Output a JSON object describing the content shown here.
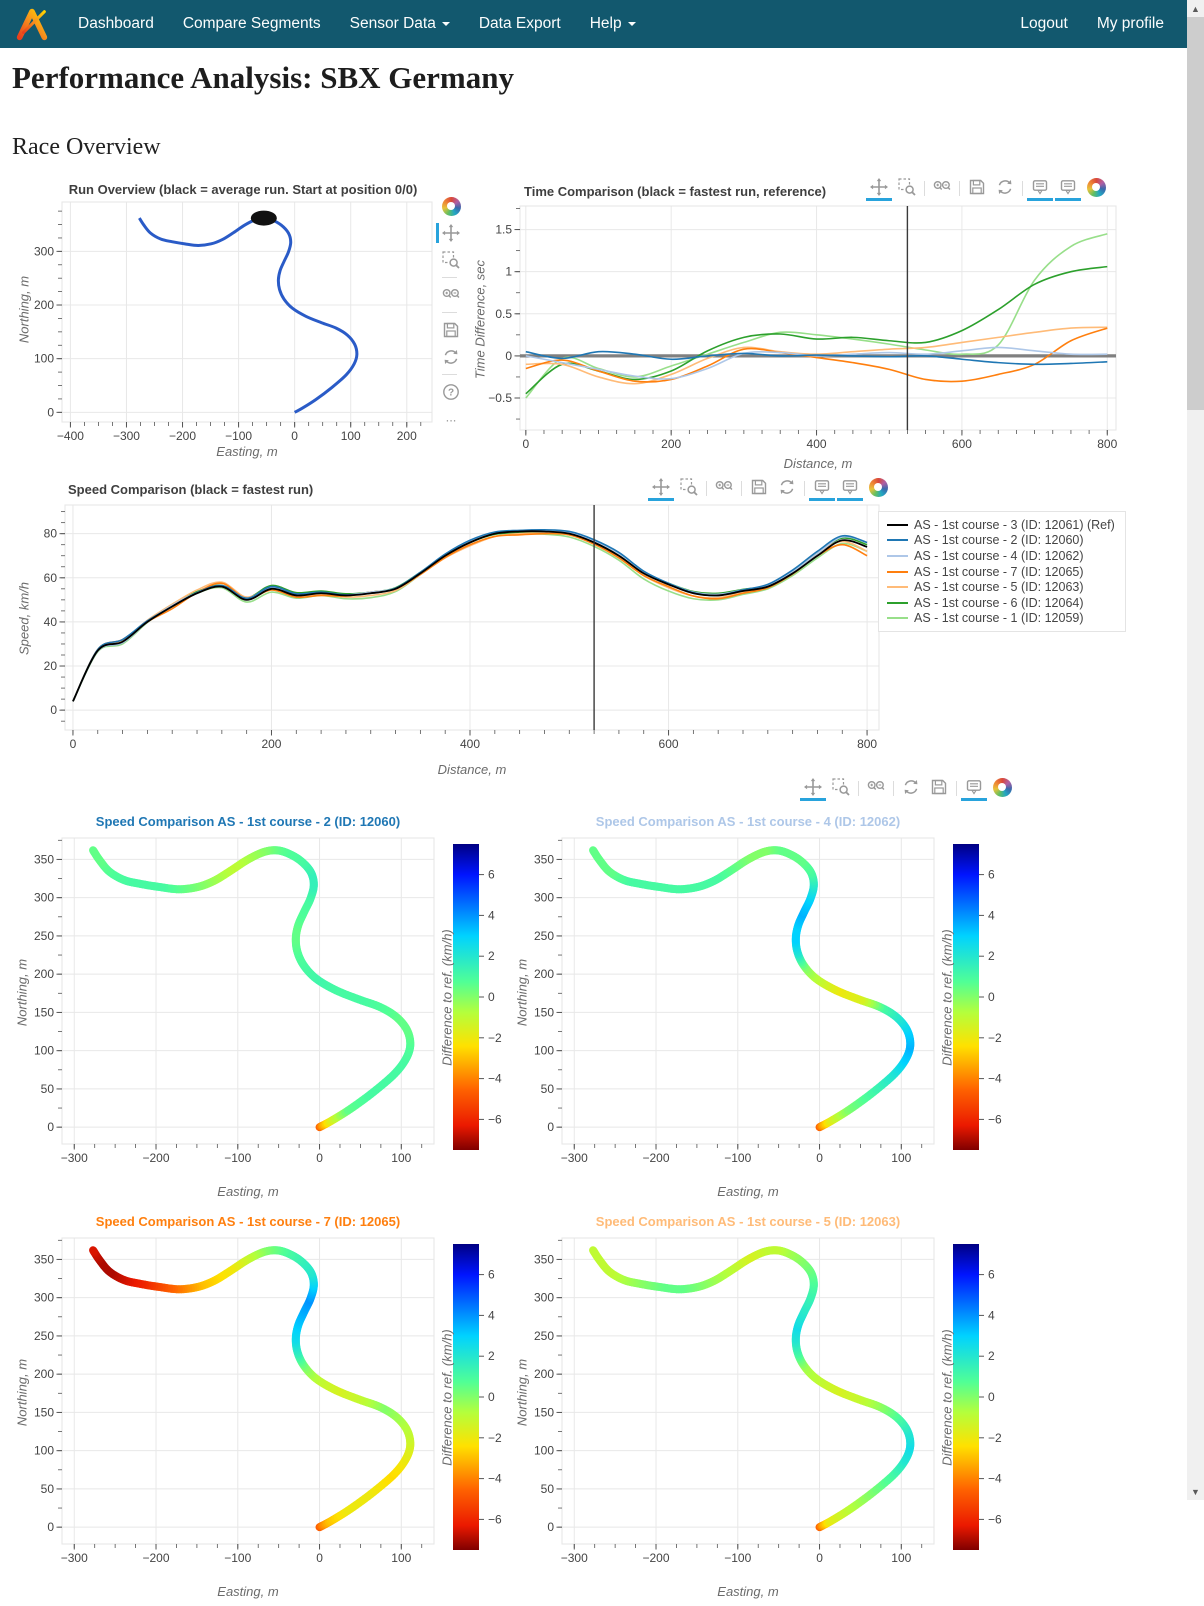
{
  "nav": {
    "items": [
      {
        "label": "Dashboard"
      },
      {
        "label": "Compare Segments"
      },
      {
        "label": "Sensor Data",
        "caret": true
      },
      {
        "label": "Data Export"
      },
      {
        "label": "Help",
        "caret": true
      }
    ],
    "right_items": [
      {
        "label": "Logout"
      },
      {
        "label": "My profile"
      }
    ]
  },
  "page": {
    "title": "Performance Analysis: SBX Germany",
    "section": "Race Overview"
  },
  "colors": {
    "navbar": "#12586e",
    "accent_active": "#28a3dc",
    "track_blue": "#2a5bc7",
    "reference_gray": "#808080"
  },
  "modebars": {
    "run_overview": {
      "orientation": "vertical",
      "icons": [
        "plotly-logo",
        "pan",
        "box-zoom",
        "sep",
        "zoom-in-out",
        "sep",
        "save",
        "reset",
        "sep",
        "help",
        "more"
      ],
      "active": [
        "pan"
      ]
    },
    "time_comparison": {
      "icons": [
        "pan",
        "box-zoom",
        "sep",
        "zoom-in-out",
        "sep",
        "save",
        "reset",
        "sep",
        "hover-closest",
        "hover-compare",
        "plotly-logo"
      ],
      "active": [
        "pan",
        "hover-closest",
        "hover-compare"
      ]
    },
    "speed_comparison": {
      "icons": [
        "pan",
        "box-zoom",
        "sep",
        "zoom-in-out",
        "sep",
        "save",
        "reset",
        "sep",
        "hover-closest",
        "hover-compare",
        "plotly-logo"
      ],
      "active": [
        "pan",
        "hover-closest",
        "hover-compare"
      ]
    },
    "heatmaps": {
      "icons": [
        "pan",
        "box-zoom",
        "sep",
        "zoom-in-out",
        "sep",
        "reset",
        "save",
        "sep",
        "hover-closest",
        "plotly-logo"
      ],
      "active": [
        "pan",
        "hover-closest"
      ]
    }
  },
  "chart_data": [
    {
      "id": "run-overview",
      "type": "line",
      "title": "Run Overview (black = average run. Start at position 0/0)",
      "xlabel": "Easting, m",
      "ylabel": "Northing, m",
      "xlim": [
        -415,
        245
      ],
      "ylim": [
        -18,
        392
      ],
      "xticks": {
        "min": -400,
        "max": 200,
        "step": 100,
        "minor": 25
      },
      "yticks": {
        "min": 0,
        "max": 300,
        "step": 100,
        "minor": 25
      },
      "line_color": "#2a5bc7",
      "marker": {
        "x": -55,
        "y": 362,
        "color": "#111111"
      },
      "track": [
        [
          0,
          0
        ],
        [
          14,
          8
        ],
        [
          38,
          24
        ],
        [
          66,
          46
        ],
        [
          92,
          70
        ],
        [
          106,
          90
        ],
        [
          111,
          108
        ],
        [
          107,
          127
        ],
        [
          94,
          144
        ],
        [
          74,
          157
        ],
        [
          48,
          167
        ],
        [
          20,
          179
        ],
        [
          -4,
          194
        ],
        [
          -19,
          211
        ],
        [
          -27,
          229
        ],
        [
          -29,
          247
        ],
        [
          -26,
          264
        ],
        [
          -19,
          281
        ],
        [
          -11,
          299
        ],
        [
          -7,
          317
        ],
        [
          -11,
          334
        ],
        [
          -24,
          349
        ],
        [
          -41,
          359
        ],
        [
          -55,
          362
        ],
        [
          -70,
          359
        ],
        [
          -89,
          349
        ],
        [
          -109,
          335
        ],
        [
          -129,
          322
        ],
        [
          -149,
          314
        ],
        [
          -172,
          311
        ],
        [
          -196,
          314
        ],
        [
          -219,
          318
        ],
        [
          -239,
          323
        ],
        [
          -257,
          334
        ],
        [
          -269,
          349
        ],
        [
          -277,
          362
        ]
      ]
    },
    {
      "id": "time-comparison",
      "type": "lines",
      "title": "Time Comparison (black = fastest run, reference)",
      "xlabel": "Distance, m",
      "ylabel": "Time Difference, sec",
      "xlim": [
        -8,
        812
      ],
      "ylim": [
        -0.88,
        1.78
      ],
      "xticks": {
        "min": 0,
        "max": 800,
        "step": 200,
        "minor": 25
      },
      "yticks": {
        "min": -0.5,
        "max": 1.5,
        "step": 0.5,
        "minor": 0.25
      },
      "x_step": 50,
      "cursor_x": 525,
      "zeroline": true,
      "series": [
        {
          "name": "AS - 1st course - 2 (ID: 12060)",
          "color": "#1f77b4",
          "values": [
            0.05,
            -0.03,
            0.05,
            0.02,
            -0.04,
            0,
            0.03,
            0,
            0.01,
            0,
            -0.01,
            0,
            -0.04,
            -0.08,
            -0.1,
            -0.09,
            -0.07
          ]
        },
        {
          "name": "AS - 1st course - 4 (ID: 12062)",
          "color": "#aec7e8",
          "values": [
            0,
            -0.08,
            -0.16,
            -0.24,
            -0.27,
            -0.15,
            0.03,
            0.04,
            0,
            0.02,
            0.04,
            0.02,
            0.06,
            0.1,
            0.06,
            0.02,
            0.02
          ]
        },
        {
          "name": "AS - 1st course - 7 (ID: 12065)",
          "color": "#ff7f0e",
          "values": [
            -0.15,
            -0.05,
            -0.18,
            -0.3,
            -0.28,
            -0.12,
            0.08,
            0.04,
            -0.02,
            -0.08,
            -0.16,
            -0.28,
            -0.3,
            -0.22,
            -0.1,
            0.18,
            0.33
          ]
        },
        {
          "name": "AS - 1st course - 5 (ID: 12063)",
          "color": "#ffbb78",
          "values": [
            -0.1,
            -0.1,
            -0.25,
            -0.33,
            -0.22,
            -0.03,
            0.1,
            0.05,
            0.02,
            0.05,
            0.08,
            0.1,
            0.16,
            0.22,
            0.28,
            0.33,
            0.34
          ]
        },
        {
          "name": "AS - 1st course - 6 (ID: 12064)",
          "color": "#2ca02c",
          "values": [
            -0.45,
            -0.1,
            -0.18,
            -0.28,
            -0.18,
            0.06,
            0.22,
            0.26,
            0.2,
            0.22,
            0.18,
            0.16,
            0.3,
            0.55,
            0.85,
            1,
            1.06
          ]
        },
        {
          "name": "AS - 1st course - 1 (ID: 12059)",
          "color": "#98df8a",
          "values": [
            -0.5,
            -0.03,
            -0.15,
            -0.25,
            -0.12,
            0.02,
            0.16,
            0.28,
            0.25,
            0.2,
            0.14,
            0.07,
            0.02,
            0.13,
            0.9,
            1.3,
            1.45
          ]
        }
      ]
    },
    {
      "id": "speed-comparison",
      "type": "lines",
      "title": "Speed Comparison (black = fastest run)",
      "xlabel": "Distance, m",
      "ylabel": "Speed, km/h",
      "xlim": [
        -8,
        812
      ],
      "ylim": [
        -9,
        93
      ],
      "xticks": {
        "min": 0,
        "max": 800,
        "step": 200,
        "minor": 25
      },
      "yticks": {
        "min": 0,
        "max": 80,
        "step": 20,
        "minor": 5
      },
      "x_step": 25,
      "offset_step": 50,
      "cursor_x": 525,
      "base": [
        4,
        27,
        31,
        40,
        47,
        53,
        56,
        50,
        55,
        52,
        53,
        52,
        53,
        55,
        62,
        70,
        76,
        80,
        81,
        81,
        80,
        76,
        70,
        62,
        57,
        53,
        52,
        54,
        56,
        62,
        70,
        77,
        74
      ],
      "series": [
        {
          "name": "AS - 1st course - 3 (ID: 12061) (Ref)",
          "color": "#000000",
          "width": 1.8,
          "offsets": [
            0,
            0,
            0,
            0,
            0,
            0,
            0,
            0,
            0,
            0,
            0,
            0,
            0,
            0,
            0,
            0,
            0
          ]
        },
        {
          "name": "AS - 1st course - 2 (ID: 12060)",
          "color": "#1f77b4",
          "offsets": [
            0,
            1,
            0,
            0.5,
            1,
            0.5,
            0,
            0.5,
            1,
            0.5,
            1,
            1.5,
            0.5,
            0,
            1,
            2,
            2
          ]
        },
        {
          "name": "AS - 1st course - 4 (ID: 12062)",
          "color": "#aec7e8",
          "offsets": [
            0,
            -0.5,
            0.5,
            0,
            0.5,
            0,
            0.5,
            0,
            0.5,
            0.5,
            0.5,
            1,
            0.5,
            0.5,
            0.5,
            1,
            2
          ]
        },
        {
          "name": "AS - 1st course - 7 (ID: 12065)",
          "color": "#ff7f0e",
          "offsets": [
            0,
            1,
            -1,
            1.5,
            -0.5,
            -1,
            0.5,
            -0.5,
            -1,
            -1.5,
            -0.5,
            -1,
            -1,
            -1.5,
            -0.5,
            0,
            -4
          ]
        },
        {
          "name": "AS - 1st course - 5 (ID: 12063)",
          "color": "#ffbb78",
          "offsets": [
            0,
            0.5,
            1,
            2,
            0.5,
            -0.5,
            -1,
            -0.5,
            -1.5,
            -1,
            -0.5,
            -0.5,
            -1.5,
            -1,
            0,
            1,
            -2
          ]
        },
        {
          "name": "AS - 1st course - 6 (ID: 12064)",
          "color": "#2ca02c",
          "offsets": [
            0,
            -0.5,
            1,
            0.5,
            1.5,
            1,
            0.5,
            0.5,
            0,
            -0.5,
            0.5,
            0,
            0.5,
            1,
            0.5,
            1,
            1
          ]
        },
        {
          "name": "AS - 1st course - 1 (ID: 12059)",
          "color": "#98df8a",
          "offsets": [
            0,
            -1,
            0.5,
            -0.5,
            -1.5,
            -1,
            -2,
            -0.5,
            0.5,
            -1,
            -1.5,
            -2,
            -3,
            -2,
            -1,
            -1,
            -2
          ]
        }
      ]
    },
    {
      "id": "heatmap-12060",
      "type": "track-heatmap",
      "title": "Speed Comparison AS - 1st course - 2 (ID: 12060)",
      "title_color": "#1f77b4",
      "xlabel": "Easting, m",
      "ylabel": "Northing, m",
      "colorbar_label": "Difference to ref. (km/h)",
      "xlim": [
        -315,
        140
      ],
      "ylim": [
        -22,
        378
      ],
      "xticks": {
        "min": -300,
        "max": 100,
        "step": 100,
        "minor": 25
      },
      "yticks": {
        "min": 0,
        "max": 350,
        "step": 50,
        "minor": 25
      },
      "colorbar": {
        "min": -7.5,
        "max": 7.5,
        "ticks": [
          6,
          4,
          2,
          0,
          -2,
          -4,
          -6
        ]
      },
      "diffs": [
        -5,
        -2,
        0.5,
        1,
        1,
        1,
        0.8,
        0.5,
        0.5,
        0.8,
        1,
        1,
        1.2,
        1,
        0.8,
        0.5,
        0.5,
        0.8,
        1,
        1.5,
        1.5,
        1,
        0.8,
        0.5,
        0,
        -0.5,
        -1,
        -0.5,
        0,
        0.5,
        1,
        1,
        1,
        0.8,
        0.5,
        0.5
      ]
    },
    {
      "id": "heatmap-12062",
      "type": "track-heatmap",
      "title": "Speed Comparison AS - 1st course - 4 (ID: 12062)",
      "title_color": "#aec7e8",
      "xlabel": "Easting, m",
      "ylabel": "Northing, m",
      "colorbar_label": "Difference to ref. (km/h)",
      "xlim": [
        -315,
        140
      ],
      "ylim": [
        -22,
        378
      ],
      "xticks": {
        "min": -300,
        "max": 100,
        "step": 100,
        "minor": 25
      },
      "yticks": {
        "min": 0,
        "max": 350,
        "step": 50,
        "minor": 25
      },
      "colorbar": {
        "min": -7.5,
        "max": 7.5,
        "ticks": [
          6,
          4,
          2,
          0,
          -2,
          -4,
          -6
        ]
      },
      "diffs": [
        -5,
        -2,
        0,
        1,
        2,
        3,
        3.5,
        3,
        2,
        1,
        -1.5,
        -2,
        -1,
        0,
        2,
        3,
        3,
        3.5,
        3,
        2,
        1,
        0.5,
        0.5,
        0.5,
        0,
        0,
        0.5,
        1,
        1,
        1,
        1,
        1,
        1,
        0.5,
        0.5,
        0.5
      ]
    },
    {
      "id": "heatmap-12065",
      "type": "track-heatmap",
      "title": "Speed Comparison AS - 1st course - 7 (ID: 12065)",
      "title_color": "#ff7f0e",
      "xlabel": "Easting, m",
      "ylabel": "Northing, m",
      "colorbar_label": "Difference to ref. (km/h)",
      "xlim": [
        -315,
        140
      ],
      "ylim": [
        -22,
        378
      ],
      "xticks": {
        "min": -300,
        "max": 100,
        "step": 100,
        "minor": 25
      },
      "yticks": {
        "min": 0,
        "max": 350,
        "step": 50,
        "minor": 25
      },
      "colorbar": {
        "min": -7.5,
        "max": 7.5,
        "ticks": [
          6,
          4,
          2,
          0,
          -2,
          -4,
          -6
        ]
      },
      "diffs": [
        -5,
        -3,
        -2,
        -2,
        -2.5,
        -2,
        -1.5,
        -1,
        -0.5,
        0,
        -1,
        -1.5,
        -1,
        0,
        1.5,
        2.5,
        3,
        3.5,
        4,
        3,
        2,
        1.5,
        1,
        0.5,
        0,
        -1,
        -2,
        -2.5,
        -3,
        -4,
        -5,
        -6,
        -6.5,
        -7,
        -7,
        -6.5
      ]
    },
    {
      "id": "heatmap-12063",
      "type": "track-heatmap",
      "title": "Speed Comparison AS - 1st course - 5 (ID: 12063)",
      "title_color": "#ffbb78",
      "xlabel": "Easting, m",
      "ylabel": "Northing, m",
      "colorbar_label": "Difference to ref. (km/h)",
      "xlim": [
        -315,
        140
      ],
      "ylim": [
        -22,
        378
      ],
      "xticks": {
        "min": -300,
        "max": 100,
        "step": 100,
        "minor": 25
      },
      "yticks": {
        "min": 0,
        "max": 350,
        "step": 50,
        "minor": 25
      },
      "colorbar": {
        "min": -7.5,
        "max": 7.5,
        "ticks": [
          6,
          4,
          2,
          0,
          -2,
          -4,
          -6
        ]
      },
      "diffs": [
        -5,
        -2,
        -1,
        0,
        1,
        2,
        2.5,
        2,
        1,
        0,
        -1,
        -1.5,
        -1,
        -0.5,
        1,
        2,
        2.5,
        2,
        1.5,
        1,
        0.5,
        0,
        -0.5,
        -1,
        -1,
        -1.5,
        -1,
        -0.5,
        0,
        0.5,
        0.5,
        0,
        -0.5,
        -1,
        -1,
        -1
      ]
    }
  ]
}
